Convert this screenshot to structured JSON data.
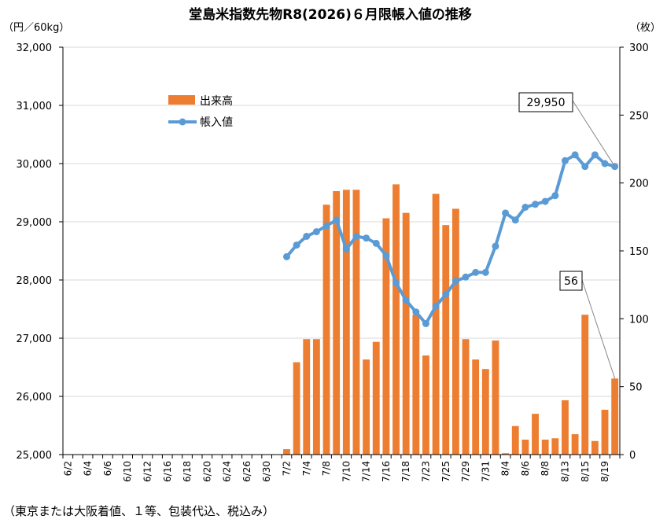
{
  "chart_data": {
    "type": "bar+line",
    "title": "堂島米指数先物R8(2026)６月限帳入値の推移",
    "left_unit": "（円／60kg）",
    "right_unit": "（枚）",
    "note": "（東京または大阪着値、１等、包装代込、税込み）",
    "left_axis": {
      "min": 25000,
      "max": 32000,
      "step": 1000,
      "tick_labels": [
        "25,000",
        "26,000",
        "27,000",
        "28,000",
        "29,000",
        "30,000",
        "31,000",
        "32,000"
      ]
    },
    "right_axis": {
      "min": 0,
      "max": 300,
      "step": 50,
      "tick_labels": [
        "0",
        "50",
        "100",
        "150",
        "200",
        "250",
        "300"
      ]
    },
    "x_tick_labels": [
      "6/2",
      "6/4",
      "6/6",
      "6/10",
      "6/12",
      "6/16",
      "6/18",
      "6/20",
      "6/24",
      "6/26",
      "6/30",
      "7/2",
      "7/4",
      "7/8",
      "7/10",
      "7/14",
      "7/16",
      "7/18",
      "7/23",
      "7/25",
      "7/29",
      "7/31",
      "8/4",
      "8/6",
      "8/8",
      "8/13",
      "8/15",
      "8/19"
    ],
    "grid": true,
    "legend_position": "top-left",
    "series": [
      {
        "name": "出来高",
        "type": "bar",
        "axis": "right",
        "color": "#ED7D31",
        "points": [
          [
            22,
            4
          ],
          [
            23,
            68
          ],
          [
            24,
            85
          ],
          [
            25,
            85
          ],
          [
            26,
            184
          ],
          [
            27,
            194
          ],
          [
            28,
            195
          ],
          [
            29,
            195
          ],
          [
            30,
            70
          ],
          [
            31,
            83
          ],
          [
            32,
            174
          ],
          [
            33,
            199
          ],
          [
            34,
            178
          ],
          [
            35,
            103
          ],
          [
            36,
            73
          ],
          [
            37,
            192
          ],
          [
            38,
            169
          ],
          [
            39,
            181
          ],
          [
            40,
            85
          ],
          [
            41,
            70
          ],
          [
            42,
            63
          ],
          [
            43,
            84
          ],
          [
            44,
            1
          ],
          [
            45,
            21
          ],
          [
            46,
            11
          ],
          [
            47,
            30
          ],
          [
            48,
            11
          ],
          [
            49,
            12
          ],
          [
            50,
            40
          ],
          [
            51,
            15
          ],
          [
            52,
            103
          ],
          [
            53,
            10
          ],
          [
            54,
            33
          ],
          [
            55,
            56
          ]
        ]
      },
      {
        "name": "帳入値",
        "type": "line",
        "axis": "left",
        "color": "#5B9BD5",
        "points": [
          [
            22,
            28400
          ],
          [
            23,
            28600
          ],
          [
            24,
            28750
          ],
          [
            25,
            28830
          ],
          [
            26,
            28930
          ],
          [
            27,
            29030
          ],
          [
            28,
            28530
          ],
          [
            29,
            28750
          ],
          [
            30,
            28720
          ],
          [
            31,
            28630
          ],
          [
            32,
            28420
          ],
          [
            33,
            27950
          ],
          [
            34,
            27650
          ],
          [
            35,
            27450
          ],
          [
            36,
            27250
          ],
          [
            37,
            27550
          ],
          [
            38,
            27750
          ],
          [
            39,
            27980
          ],
          [
            40,
            28050
          ],
          [
            41,
            28130
          ],
          [
            42,
            28130
          ],
          [
            43,
            28580
          ],
          [
            44,
            29150
          ],
          [
            45,
            29030
          ],
          [
            46,
            29250
          ],
          [
            47,
            29300
          ],
          [
            48,
            29350
          ],
          [
            49,
            29450
          ],
          [
            50,
            30050
          ],
          [
            51,
            30150
          ],
          [
            52,
            29950
          ],
          [
            53,
            30150
          ],
          [
            54,
            30000
          ],
          [
            55,
            29950
          ]
        ]
      }
    ],
    "callouts": [
      {
        "text": "29,950",
        "series": "帳入値",
        "index": 55
      },
      {
        "text": "56",
        "series": "出来高",
        "index": 55
      }
    ]
  }
}
